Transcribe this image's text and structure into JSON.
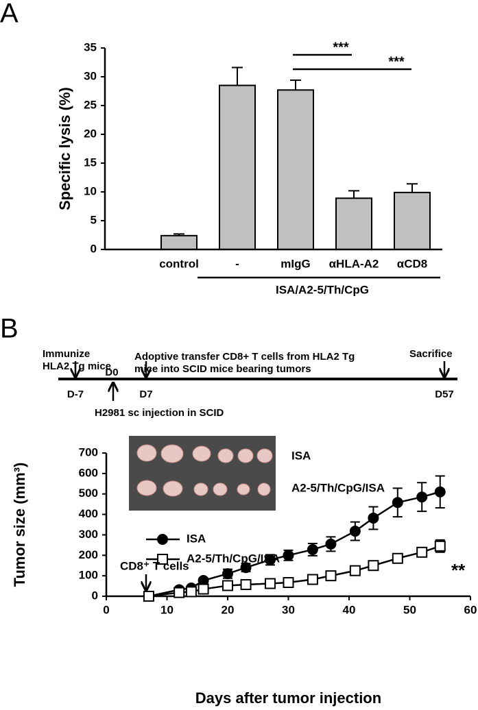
{
  "chart_data": [
    {
      "type": "bar",
      "panel_label": "A",
      "y_label": "Specific lysis (%)",
      "categories": [
        "control",
        "-",
        "mIgG",
        "αHLA-A2",
        "αCD8"
      ],
      "values": [
        2.4,
        28.5,
        27.7,
        8.9,
        9.9
      ],
      "errors": [
        0.3,
        3.1,
        1.7,
        1.3,
        1.5
      ],
      "color": "#c0c0c0",
      "group_label": "ISA/A2-5/Th/CpG",
      "significance": [
        "***",
        "***"
      ],
      "ylim": [
        0,
        35
      ],
      "yticks": [
        0,
        5,
        10,
        15,
        20,
        25,
        30,
        35
      ]
    },
    {
      "type": "line",
      "panel_label": "B",
      "x_label": "Days after tumor injection",
      "y_label": "Tumor size (mm³)",
      "x": [
        7,
        12,
        14,
        16,
        20,
        23,
        27,
        30,
        34,
        37,
        41,
        44,
        48,
        52,
        55
      ],
      "series": [
        {
          "name": "ISA",
          "color": "#000000",
          "marker": "circle",
          "values": [
            0,
            32,
            40,
            77,
            110,
            140,
            178,
            200,
            228,
            255,
            318,
            382,
            458,
            485,
            510
          ],
          "errors": [
            0,
            10,
            10,
            12,
            22,
            20,
            25,
            25,
            30,
            35,
            45,
            55,
            70,
            70,
            78
          ]
        },
        {
          "name": "A2-5/Th/CpG/ISA",
          "color": "#000000",
          "marker": "square",
          "values": [
            0,
            18,
            22,
            35,
            52,
            57,
            62,
            67,
            82,
            100,
            125,
            150,
            185,
            215,
            245
          ],
          "errors": [
            0,
            5,
            5,
            5,
            5,
            5,
            5,
            5,
            5,
            5,
            5,
            5,
            8,
            15,
            30
          ]
        }
      ],
      "annotation": "CD8⁺ T cells",
      "significance": "**",
      "xlim": [
        0,
        60
      ],
      "xticks": [
        0,
        10,
        20,
        30,
        40,
        50,
        60
      ],
      "ylim": [
        0,
        700
      ],
      "yticks": [
        0,
        100,
        200,
        300,
        400,
        500,
        600,
        700
      ]
    }
  ],
  "timeline": {
    "days": [
      "D-7",
      "D0",
      "D7",
      "D57"
    ],
    "immunize": [
      "Immunize",
      "HLA2 Tg mice"
    ],
    "transfer": [
      "Adoptive transfer CD8+ T cells from HLA2 Tg",
      "mice into SCID mice bearing tumors"
    ],
    "sacrifice": "Sacrifice",
    "injection": "H2981 sc injection in SCID"
  }
}
